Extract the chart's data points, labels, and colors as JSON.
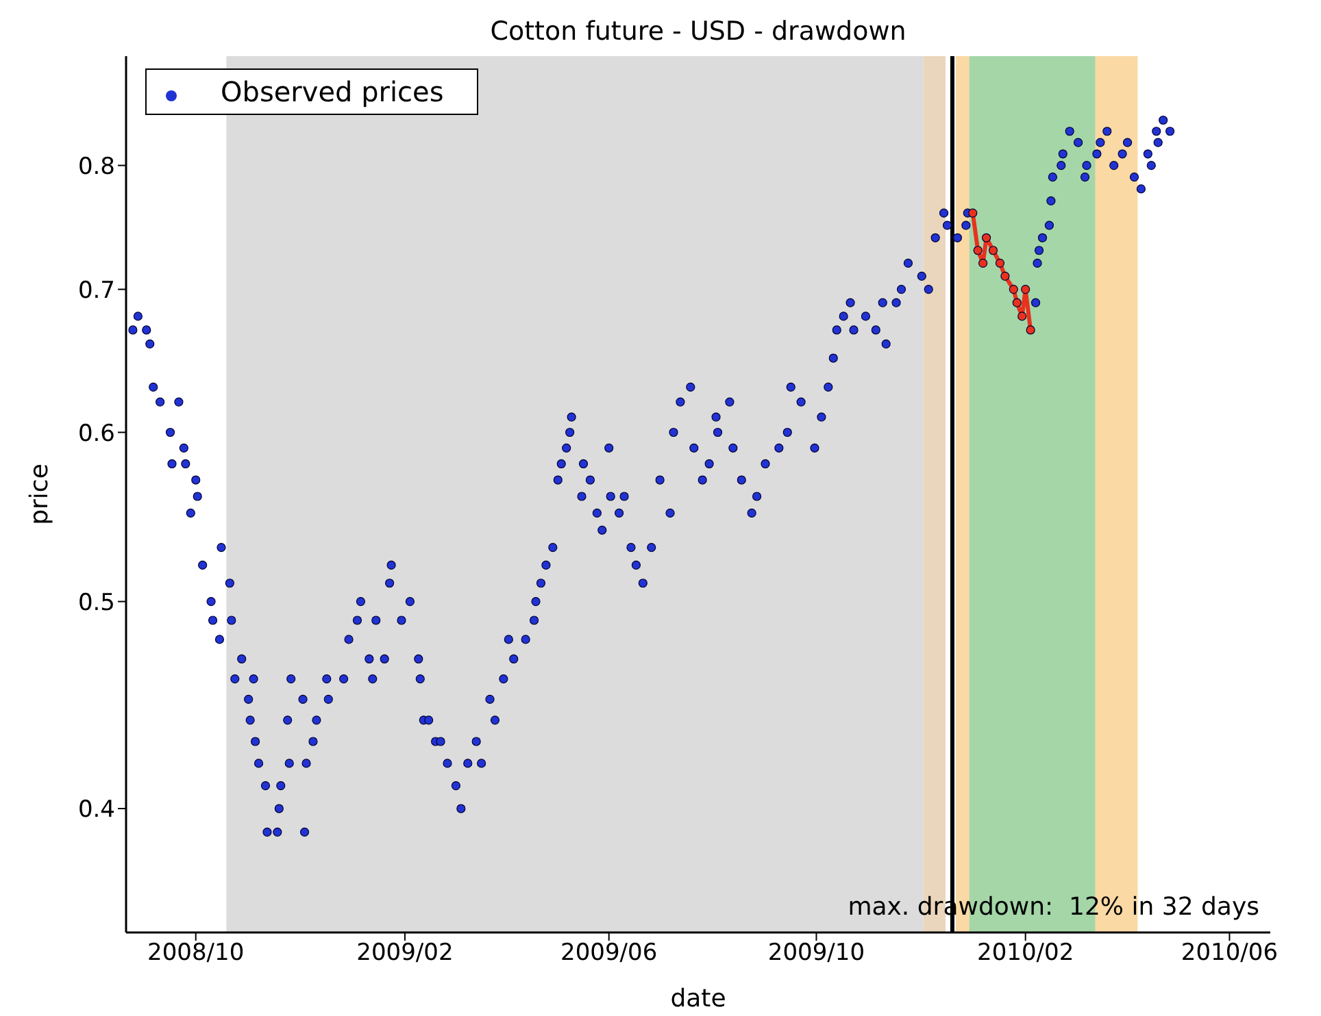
{
  "chart_data": {
    "type": "scatter",
    "title": "Cotton future - USD - drawdown",
    "xlabel": "date",
    "ylabel": "price",
    "annotations": [
      "max. drawdown:  12% in 32 days"
    ],
    "log": true,
    "legend": "top left",
    "marker": "circle",
    "xlim": [
      "2008-08-21",
      "2010-06-25"
    ],
    "xticks": [
      {
        "value": "2008-10-01",
        "label": "2008/10"
      },
      {
        "value": "2009-02-01",
        "label": "2009/02"
      },
      {
        "value": "2009-06-01",
        "label": "2009/06"
      },
      {
        "value": "2009-10-01",
        "label": "2009/10"
      },
      {
        "value": "2010-02-01",
        "label": "2010/02"
      },
      {
        "value": "2010-06-01",
        "label": "2010/06"
      }
    ],
    "ylim": [
      0.35,
      0.9
    ],
    "yticks": [
      0.4,
      0.5,
      0.6,
      0.7,
      0.8
    ],
    "bands": [
      {
        "axis": "x",
        "from": "2008-10-19",
        "to": "2009-12-03",
        "color": "#dcdcdc"
      },
      {
        "axis": "x",
        "from": "2009-12-03",
        "to": "2009-12-16",
        "color": "#ead6bc"
      },
      {
        "axis": "x",
        "from": "2009-12-22",
        "to": "2010-04-08",
        "color": "#fad9a4"
      },
      {
        "axis": "x",
        "from": "2009-12-30",
        "to": "2010-03-14",
        "color": "#a4d6a8"
      }
    ],
    "ref_lines": [
      {
        "axis": "x",
        "value": "2009-12-20",
        "color": "#000000"
      }
    ],
    "series": [
      {
        "name": "Observed prices",
        "color": "#2233d4",
        "x": [
          "2008-08-25",
          "2008-08-28",
          "2008-09-02",
          "2008-09-04",
          "2008-09-06",
          "2008-09-10",
          "2008-09-16",
          "2008-09-17",
          "2008-09-21",
          "2008-09-24",
          "2008-09-25",
          "2008-09-28",
          "2008-10-01",
          "2008-10-02",
          "2008-10-05",
          "2008-10-10",
          "2008-10-11",
          "2008-10-15",
          "2008-10-16",
          "2008-10-21",
          "2008-10-22",
          "2008-10-24",
          "2008-10-28",
          "2008-11-01",
          "2008-11-02",
          "2008-11-04",
          "2008-11-05",
          "2008-11-07",
          "2008-11-11",
          "2008-11-12",
          "2008-11-18",
          "2008-11-19",
          "2008-11-20",
          "2008-11-24",
          "2008-11-25",
          "2008-11-26",
          "2008-12-03",
          "2008-12-04",
          "2008-12-05",
          "2008-12-09",
          "2008-12-11",
          "2008-12-17",
          "2008-12-18",
          "2008-12-27",
          "2008-12-30",
          "2009-01-04",
          "2009-01-06",
          "2009-01-11",
          "2009-01-13",
          "2009-01-15",
          "2009-01-20",
          "2009-01-23",
          "2009-01-24",
          "2009-01-30",
          "2009-02-04",
          "2009-02-09",
          "2009-02-10",
          "2009-02-12",
          "2009-02-15",
          "2009-02-19",
          "2009-02-22",
          "2009-02-26",
          "2009-03-03",
          "2009-03-06",
          "2009-03-10",
          "2009-03-15",
          "2009-03-18",
          "2009-03-23",
          "2009-03-26",
          "2009-03-31",
          "2009-04-03",
          "2009-04-06",
          "2009-04-13",
          "2009-04-18",
          "2009-04-19",
          "2009-04-22",
          "2009-04-25",
          "2009-04-29",
          "2009-05-02",
          "2009-05-04",
          "2009-05-07",
          "2009-05-09",
          "2009-05-10",
          "2009-05-16",
          "2009-05-17",
          "2009-05-21",
          "2009-05-25",
          "2009-05-28",
          "2009-06-01",
          "2009-06-02",
          "2009-06-07",
          "2009-06-10",
          "2009-06-14",
          "2009-06-17",
          "2009-06-21",
          "2009-06-26",
          "2009-07-01",
          "2009-07-07",
          "2009-07-09",
          "2009-07-13",
          "2009-07-19",
          "2009-07-21",
          "2009-07-26",
          "2009-07-30",
          "2009-08-03",
          "2009-08-04",
          "2009-08-11",
          "2009-08-13",
          "2009-08-18",
          "2009-08-24",
          "2009-08-27",
          "2009-09-01",
          "2009-09-09",
          "2009-09-14",
          "2009-09-16",
          "2009-09-22",
          "2009-09-30",
          "2009-10-04",
          "2009-10-08",
          "2009-10-11",
          "2009-10-13",
          "2009-10-17",
          "2009-10-21",
          "2009-10-23",
          "2009-10-30",
          "2009-11-05",
          "2009-11-09",
          "2009-11-11",
          "2009-11-17",
          "2009-11-20",
          "2009-11-24",
          "2009-12-02",
          "2009-12-06",
          "2009-12-10",
          "2009-12-15",
          "2009-12-17",
          "2009-12-23",
          "2009-12-28",
          "2009-12-29",
          "2010-02-07",
          "2010-02-08",
          "2010-02-09",
          "2010-02-11",
          "2010-02-15",
          "2010-02-16",
          "2010-02-17",
          "2010-02-22",
          "2010-02-23",
          "2010-02-27",
          "2010-03-04",
          "2010-03-08",
          "2010-03-09",
          "2010-03-15",
          "2010-03-17",
          "2010-03-21",
          "2010-03-25",
          "2010-03-30",
          "2010-04-02",
          "2010-04-06",
          "2010-04-10",
          "2010-04-14",
          "2010-04-16",
          "2010-04-19",
          "2010-04-20",
          "2010-04-23",
          "2010-04-27"
        ],
        "values": [
          0.67,
          0.68,
          0.67,
          0.66,
          0.63,
          0.62,
          0.6,
          0.58,
          0.62,
          0.59,
          0.58,
          0.55,
          0.57,
          0.56,
          0.52,
          0.5,
          0.49,
          0.48,
          0.53,
          0.51,
          0.49,
          0.46,
          0.47,
          0.45,
          0.44,
          0.46,
          0.43,
          0.42,
          0.41,
          0.39,
          0.39,
          0.4,
          0.41,
          0.44,
          0.42,
          0.46,
          0.45,
          0.39,
          0.42,
          0.43,
          0.44,
          0.46,
          0.45,
          0.46,
          0.48,
          0.49,
          0.5,
          0.47,
          0.46,
          0.49,
          0.47,
          0.51,
          0.52,
          0.49,
          0.5,
          0.47,
          0.46,
          0.44,
          0.44,
          0.43,
          0.43,
          0.42,
          0.41,
          0.4,
          0.42,
          0.43,
          0.42,
          0.45,
          0.44,
          0.46,
          0.48,
          0.47,
          0.48,
          0.49,
          0.5,
          0.51,
          0.52,
          0.53,
          0.57,
          0.58,
          0.59,
          0.6,
          0.61,
          0.56,
          0.58,
          0.57,
          0.55,
          0.54,
          0.59,
          0.56,
          0.55,
          0.56,
          0.53,
          0.52,
          0.51,
          0.53,
          0.57,
          0.55,
          0.6,
          0.62,
          0.63,
          0.59,
          0.57,
          0.58,
          0.61,
          0.6,
          0.62,
          0.59,
          0.57,
          0.55,
          0.56,
          0.58,
          0.59,
          0.6,
          0.63,
          0.62,
          0.59,
          0.61,
          0.63,
          0.65,
          0.67,
          0.68,
          0.69,
          0.67,
          0.68,
          0.67,
          0.69,
          0.66,
          0.69,
          0.7,
          0.72,
          0.71,
          0.7,
          0.74,
          0.76,
          0.75,
          0.74,
          0.75,
          0.76,
          0.69,
          0.72,
          0.73,
          0.74,
          0.75,
          0.77,
          0.79,
          0.8,
          0.81,
          0.83,
          0.82,
          0.79,
          0.8,
          0.81,
          0.82,
          0.83,
          0.8,
          0.81,
          0.82,
          0.79,
          0.78,
          0.81,
          0.8,
          0.83,
          0.82,
          0.84,
          0.83
        ]
      },
      {
        "type": "line",
        "color": "#e8321e",
        "x": [
          "2010-01-01",
          "2010-01-04",
          "2010-01-07",
          "2010-01-09",
          "2010-01-13",
          "2010-01-17",
          "2010-01-20",
          "2010-01-25",
          "2010-01-27",
          "2010-01-30",
          "2010-02-01",
          "2010-02-04"
        ],
        "values": [
          0.76,
          0.73,
          0.72,
          0.74,
          0.73,
          0.72,
          0.71,
          0.7,
          0.69,
          0.68,
          0.7,
          0.67
        ]
      }
    ]
  }
}
